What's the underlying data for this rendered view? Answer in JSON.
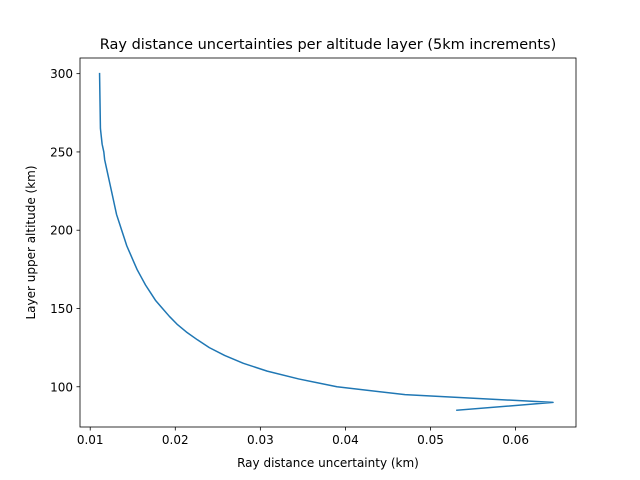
{
  "chart_data": {
    "type": "line",
    "title": "Ray distance uncertainties per altitude layer (5km increments)",
    "xlabel": "Ray distance uncertainty (km)",
    "ylabel": "Layer upper altitude (km)",
    "xlim": [
      0.0088,
      0.0671
    ],
    "ylim": [
      74.3,
      310.0
    ],
    "xticks": [
      0.01,
      0.02,
      0.03,
      0.04,
      0.05,
      0.06
    ],
    "xtick_labels": [
      "0.01",
      "0.02",
      "0.03",
      "0.04",
      "0.05",
      "0.06"
    ],
    "yticks": [
      100,
      150,
      200,
      250,
      300
    ],
    "ytick_labels": [
      "100",
      "150",
      "200",
      "250",
      "300"
    ],
    "grid": false,
    "line_color": "#1f77b4",
    "series": [
      {
        "x": [
          0.0531,
          0.0644,
          0.047,
          0.039,
          0.0345,
          0.0308,
          0.028,
          0.0258,
          0.024,
          0.0226,
          0.0213,
          0.0202,
          0.0193,
          0.0185,
          0.0177,
          0.0171,
          0.0165,
          0.016,
          0.0155,
          0.0151,
          0.0147,
          0.0143,
          0.014,
          0.0137,
          0.0134,
          0.0131,
          0.0129,
          0.0127,
          0.0125,
          0.0123,
          0.0121,
          0.0119,
          0.0117,
          0.0116,
          0.0114,
          0.0113,
          0.0112,
          0.0111
        ],
        "y": [
          85,
          90,
          95,
          100,
          105,
          110,
          115,
          120,
          125,
          130,
          135,
          140,
          145,
          150,
          155,
          160,
          165,
          170,
          175,
          180,
          185,
          190,
          195,
          200,
          205,
          210,
          215,
          220,
          225,
          230,
          235,
          240,
          245,
          250,
          255,
          260,
          265,
          300
        ]
      }
    ]
  }
}
